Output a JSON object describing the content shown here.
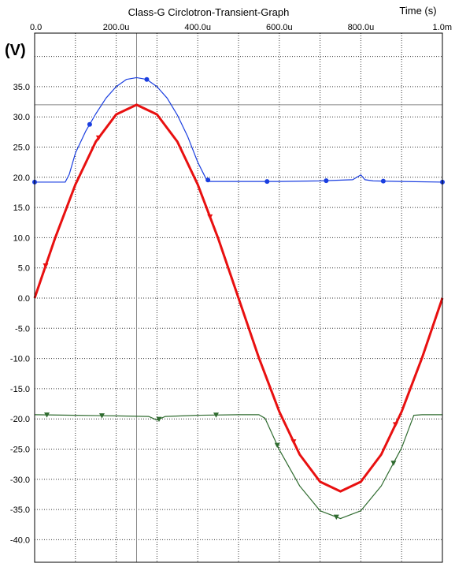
{
  "chart_data": {
    "type": "line",
    "title": "Class-G Circlotron-Transient-Graph",
    "xlabel": "Time  (s)",
    "ylabel": "(V)",
    "x_unit": "s",
    "xlim": [
      0,
      0.001
    ],
    "ylim": [
      -42.5,
      40.0
    ],
    "grid": true,
    "x_tick_labels": [
      "0.0",
      "200.0u",
      "400.0u",
      "600.0u",
      "800.0u",
      "1.0m"
    ],
    "x_tick_values": [
      0,
      0.0002,
      0.0004,
      0.0006,
      0.0008,
      0.001
    ],
    "y_tick_values": [
      35,
      30,
      25,
      20,
      15,
      10,
      5,
      0,
      -5,
      -10,
      -15,
      -20,
      -25,
      -30,
      -35,
      -40
    ],
    "y_tick_labels": [
      "35.0",
      "30.0",
      "25.0",
      "20.0",
      "15.0",
      "10.0",
      "5.0",
      "0.0",
      "-5.0",
      "-10.0",
      "-15.0",
      "-20.0",
      "-25.0",
      "-30.0",
      "-35.0",
      "-40.0"
    ],
    "cursor": {
      "x": 0.00025,
      "y": 32.0
    },
    "series": [
      {
        "color": "#e81010",
        "marker": "triangle-down",
        "x": [
          0,
          5e-05,
          0.0001,
          0.00015,
          0.0002,
          0.00025,
          0.0003,
          0.00035,
          0.0004,
          0.00045,
          0.0005,
          0.00055,
          0.0006,
          0.00065,
          0.0007,
          0.00075,
          0.0008,
          0.00085,
          0.0009,
          0.00095,
          0.001
        ],
        "y": [
          0.0,
          9.9,
          18.8,
          25.9,
          30.4,
          32.0,
          30.4,
          25.9,
          18.8,
          9.9,
          0.0,
          -9.9,
          -18.8,
          -25.9,
          -30.4,
          -32.0,
          -30.4,
          -25.9,
          -18.8,
          -9.9,
          0.0
        ],
        "marker_x": [
          2.7e-05,
          0.000157,
          0.00043,
          0.000635,
          0.000885
        ]
      },
      {
        "color": "#1a3ee0",
        "marker": "circle",
        "x": [
          0,
          7.5e-05,
          8.5e-05,
          0.0001,
          0.000125,
          0.00015,
          0.000175,
          0.0002,
          0.000225,
          0.00025,
          0.000275,
          0.0003,
          0.000325,
          0.00035,
          0.000375,
          0.0004,
          0.00042,
          0.00043,
          0.0005,
          0.0006,
          0.0007,
          0.00078,
          0.0008,
          0.00081,
          0.00083,
          0.0009,
          0.001
        ],
        "y": [
          19.2,
          19.2,
          20.5,
          24.0,
          27.6,
          30.5,
          33.1,
          35.0,
          36.2,
          36.5,
          36.2,
          35.0,
          33.1,
          30.3,
          26.8,
          22.5,
          19.8,
          19.3,
          19.3,
          19.3,
          19.4,
          19.6,
          20.4,
          19.6,
          19.4,
          19.3,
          19.2
        ],
        "marker_x": [
          0,
          0.000135,
          0.000275,
          0.000425,
          0.00057,
          0.000715,
          0.000855,
          0.001
        ]
      },
      {
        "color": "#2f6b2f",
        "marker": "triangle-down",
        "x": [
          0,
          0.0001,
          0.0002,
          0.00028,
          0.0003,
          0.00032,
          0.0004,
          0.0005,
          0.00055,
          0.000565,
          0.0006,
          0.00065,
          0.0007,
          0.00075,
          0.0008,
          0.00085,
          0.0009,
          0.00093,
          0.00095,
          0.001
        ],
        "y": [
          -19.3,
          -19.4,
          -19.5,
          -19.6,
          -20.2,
          -19.6,
          -19.4,
          -19.3,
          -19.3,
          -19.9,
          -25.1,
          -31.1,
          -35.2,
          -36.5,
          -35.2,
          -31.1,
          -24.8,
          -19.4,
          -19.3,
          -19.3
        ],
        "marker_x": [
          3e-05,
          0.000165,
          0.000305,
          0.000445,
          0.000595,
          0.00074,
          0.00088
        ]
      }
    ]
  }
}
